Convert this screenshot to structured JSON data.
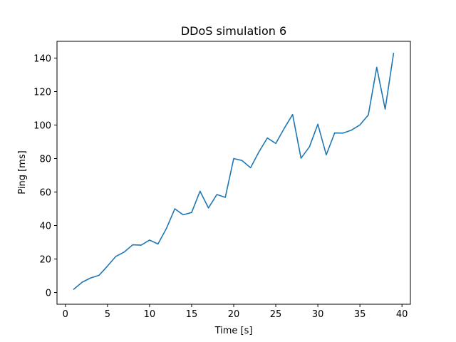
{
  "chart_data": {
    "type": "line",
    "title": "DDoS simulation 6",
    "xlabel": "Time [s]",
    "ylabel": "Ping [ms]",
    "xlim": [
      -1,
      41
    ],
    "ylim": [
      -7,
      150
    ],
    "xticks": [
      0,
      5,
      10,
      15,
      20,
      25,
      30,
      35,
      40
    ],
    "yticks": [
      0,
      20,
      40,
      60,
      80,
      100,
      120,
      140
    ],
    "grid": false,
    "series": [
      {
        "color": "#1f77b4",
        "x": [
          1,
          2,
          3,
          4,
          5,
          6,
          7,
          8,
          9,
          10,
          11,
          12,
          13,
          14,
          15,
          16,
          17,
          18,
          19,
          20,
          21,
          22,
          23,
          24,
          25,
          26,
          27,
          28,
          29,
          30,
          31,
          32,
          33,
          34,
          35,
          36,
          37,
          38,
          39
        ],
        "values": [
          2,
          6.2,
          8.7,
          10.3,
          15.8,
          21.6,
          24.2,
          28.5,
          28.3,
          31.3,
          29,
          38.2,
          50,
          46.4,
          47.8,
          60.5,
          50.5,
          58.5,
          56.8,
          80,
          78.8,
          74.5,
          84,
          92.3,
          89,
          98,
          106.3,
          80.2,
          87,
          100.5,
          82.2,
          95.3,
          95.2,
          97,
          100.1,
          106,
          134.5,
          109.5,
          142.8
        ]
      }
    ]
  }
}
